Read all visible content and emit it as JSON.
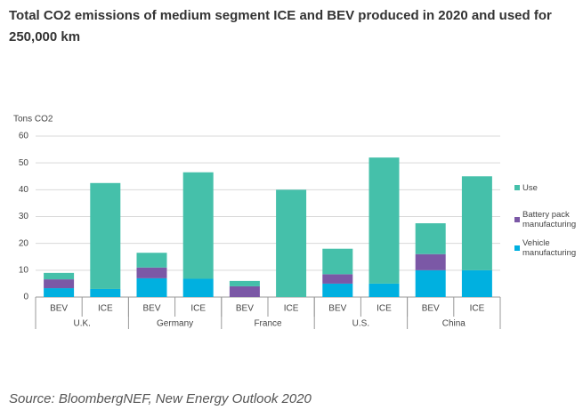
{
  "chart_data": {
    "type": "stacked-bar",
    "title": "Total CO2 emissions of medium segment ICE and BEV produced in 2020 and used for 250,000 km",
    "y_label": "Tons CO2",
    "categories": [
      "BEV",
      "ICE",
      "BEV",
      "ICE",
      "BEV",
      "ICE",
      "BEV",
      "ICE",
      "BEV",
      "ICE"
    ],
    "groups": [
      "U.K.",
      "Germany",
      "France",
      "U.S.",
      "China"
    ],
    "series": [
      {
        "name": "Vehicle manufacturing",
        "color": "#00b0e0",
        "values": [
          3.3,
          3,
          7,
          6.8,
          0,
          0,
          5,
          5,
          10,
          10
        ]
      },
      {
        "name": "Battery pack manufacturing",
        "color": "#7b58a6",
        "values": [
          3.3,
          0,
          4,
          0,
          4,
          0,
          3.5,
          0,
          6,
          0
        ]
      },
      {
        "name": "Use",
        "color": "#45c0aa",
        "values": [
          2.4,
          39.5,
          5.5,
          39.7,
          2,
          40,
          9.5,
          47,
          11.5,
          35
        ]
      }
    ],
    "ylim": [
      0,
      60
    ],
    "yticks": [
      0,
      10,
      20,
      30,
      40,
      50,
      60
    ],
    "grid": true,
    "source": "Source: BloombergNEF, New Energy Outlook 2020"
  }
}
